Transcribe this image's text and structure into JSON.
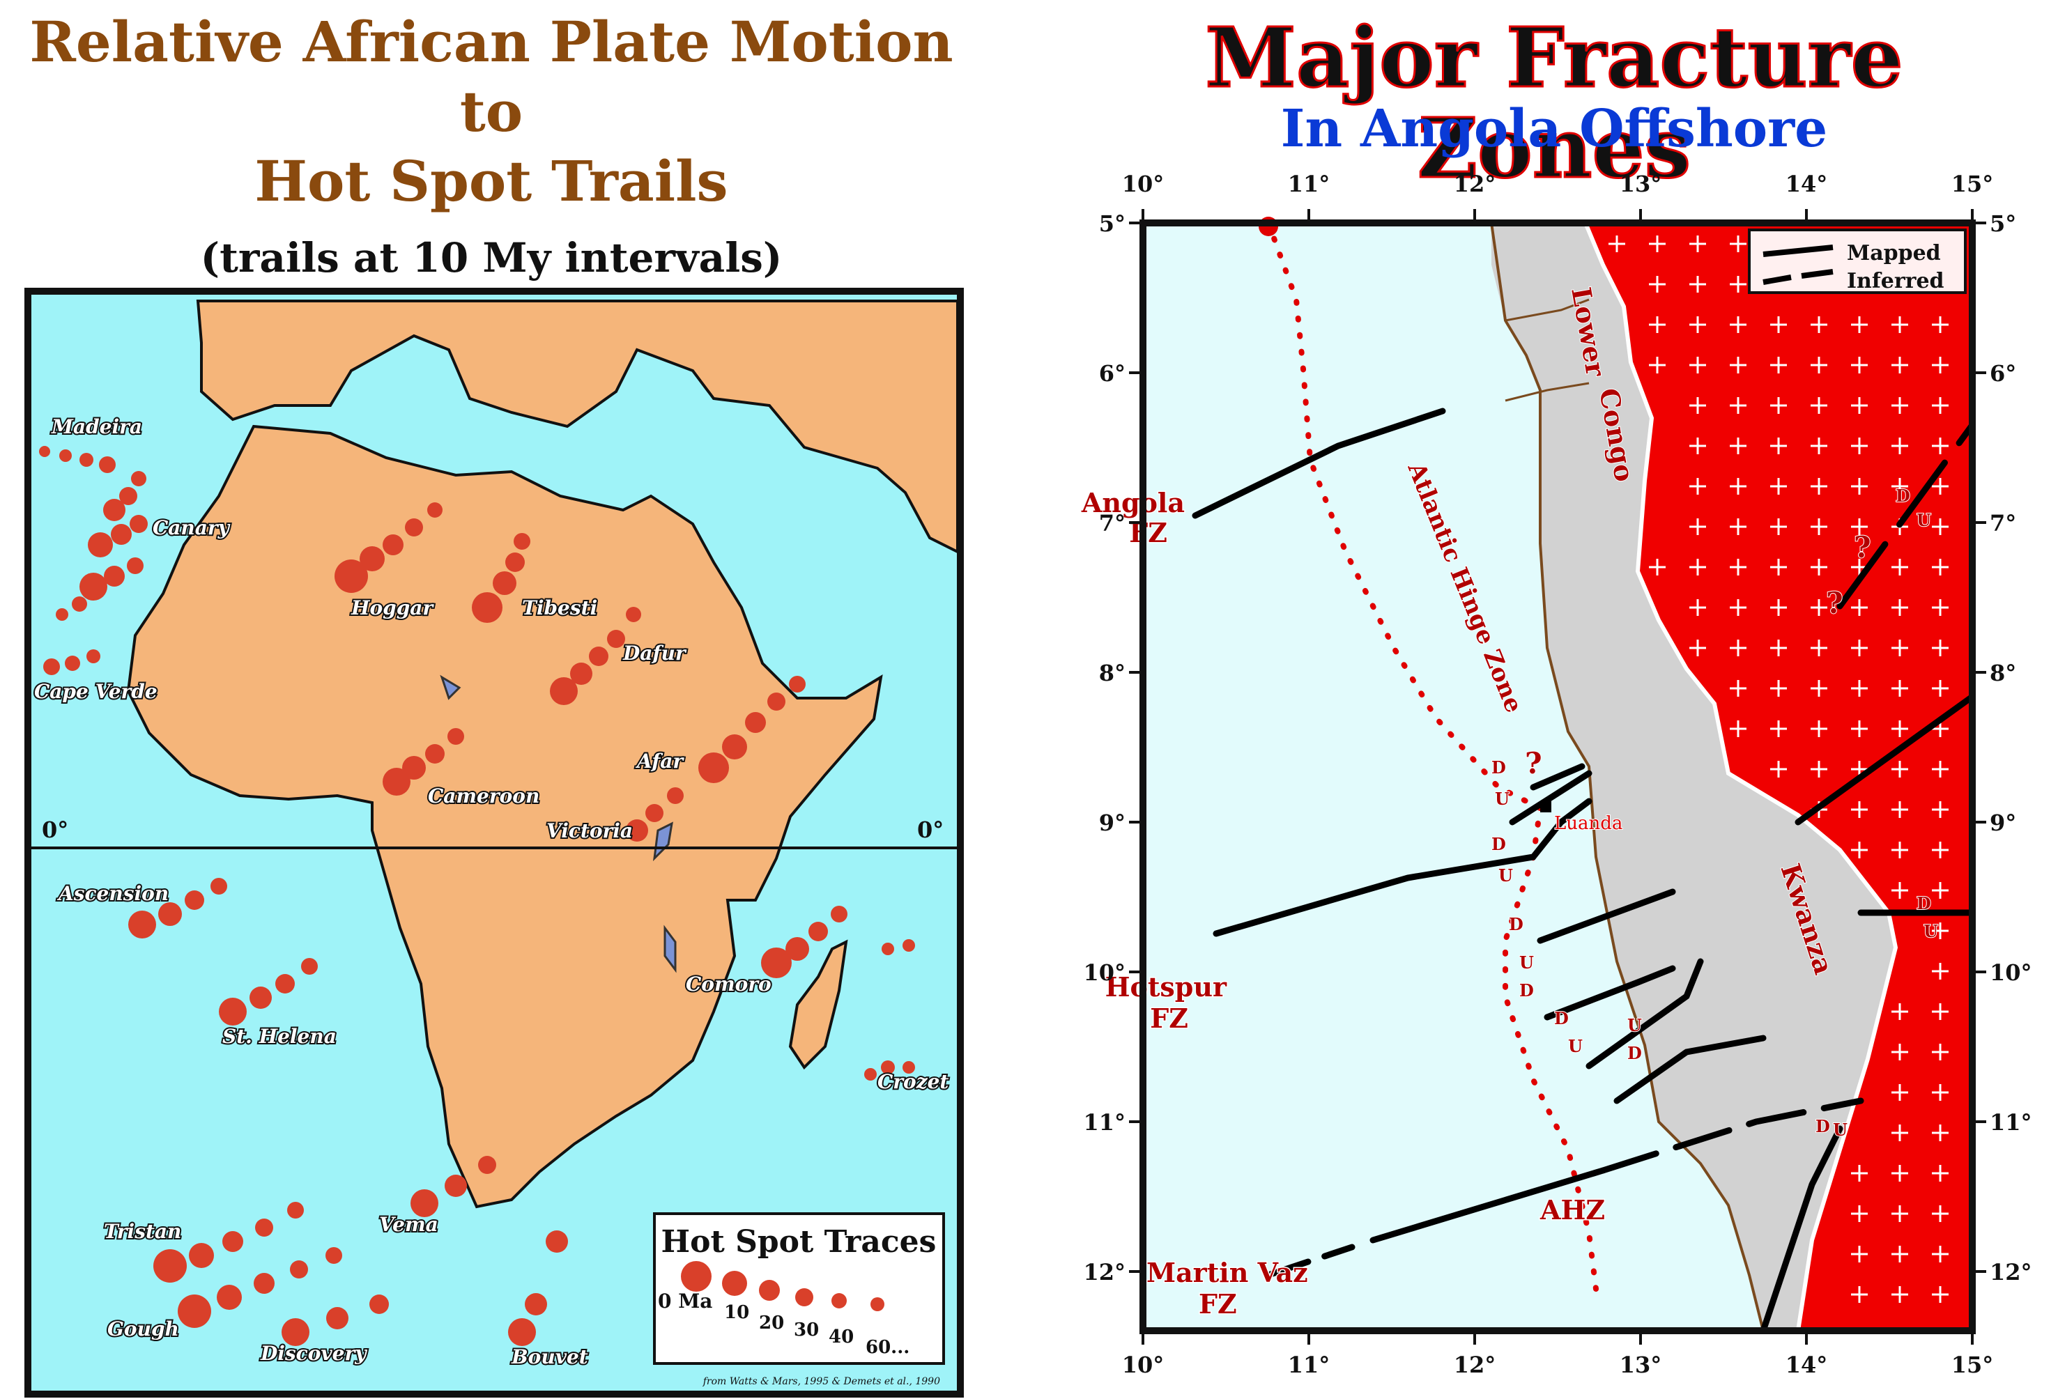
{
  "left_map": {
    "title_lines": [
      "Relative African Plate Motion",
      "to",
      "Hot Spot Trails"
    ],
    "subtitle": "(trails at 10 My intervals)",
    "equator_label_left": "0°",
    "equator_label_right": "0°",
    "hotspots": [
      "Madeira",
      "Canary",
      "Hoggar",
      "Tibesti",
      "Dafur",
      "Cape Verde",
      "Afar",
      "Cameroon",
      "Victoria",
      "Ascension",
      "St. Helena",
      "Comoro",
      "Crozet",
      "Tristan",
      "Vema",
      "Gough",
      "Discovery",
      "Bouvet"
    ],
    "legend": {
      "title": "Hot Spot Traces",
      "ages": [
        "0 Ma",
        "10",
        "20",
        "30",
        "40",
        "60..."
      ]
    },
    "credit": "from Watts & Mars, 1995 & Demets et al., 1990",
    "colors": {
      "ocean": "#9ff3f8",
      "land": "#f5b57a",
      "trail": "#d9402a",
      "lake": "#7b93d6",
      "title": "#8a4a0e"
    }
  },
  "right_map": {
    "title": "Major Fracture Zones",
    "subtitle": "In Angola Offshore",
    "longitude_labels": [
      "10°",
      "11°",
      "12°",
      "13°",
      "14°",
      "15°"
    ],
    "latitude_labels": [
      "5°",
      "6°",
      "7°",
      "8°",
      "9°",
      "10°",
      "11°",
      "12°"
    ],
    "legend": {
      "mapped": "Mapped",
      "inferred": "Inferred"
    },
    "fracture_zones": {
      "angola": [
        "Angola",
        "FZ"
      ],
      "hotspur": [
        "Hotspur",
        "FZ"
      ],
      "martin_vaz": [
        "Martin Vaz",
        "FZ"
      ]
    },
    "basins": {
      "lower_congo": [
        "Lower",
        "Congo"
      ],
      "kwanza": "Kwanza"
    },
    "hinge_zone": "Atlantic Hinge Zone",
    "ahz": "AHZ",
    "city": "Luanda",
    "fault_marks": {
      "down": "D",
      "up": "U",
      "query": "?"
    },
    "colors": {
      "ocean": "#e2fbfc",
      "basin": "#d2d2d2",
      "basement": "#f00000",
      "coast": "#7a4a1e",
      "fault": "#000000",
      "label": "#b00000"
    }
  }
}
